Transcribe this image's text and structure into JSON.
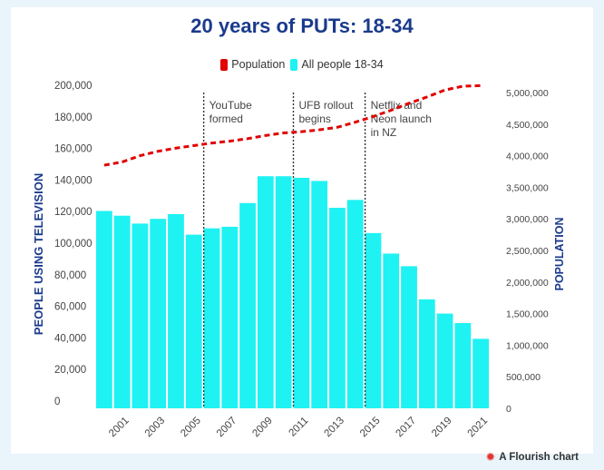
{
  "chart_data": {
    "type": "bar",
    "title": "20 years of PUTs: 18-34",
    "ylabel_left": "PEOPLE USING TELEVISION",
    "ylabel_right": "POPULATION",
    "years": [
      2000,
      2001,
      2002,
      2003,
      2004,
      2005,
      2006,
      2007,
      2008,
      2009,
      2010,
      2011,
      2012,
      2013,
      2014,
      2015,
      2016,
      2017,
      2018,
      2019,
      2020,
      2021
    ],
    "x_tick_labels": [
      "2001",
      "2003",
      "2005",
      "2007",
      "2009",
      "2011",
      "2013",
      "2015",
      "2017",
      "2019",
      "2021"
    ],
    "y_left_ticks": [
      "0",
      "20,000",
      "40,000",
      "60,000",
      "80,000",
      "100,000",
      "120,000",
      "140,000",
      "160,000",
      "180,000",
      "200,000"
    ],
    "y_left_max": 200000,
    "y_right_ticks": [
      "0",
      "500,000",
      "1,000,000",
      "1,500,000",
      "2,000,000",
      "2,500,000",
      "3,000,000",
      "3,500,000",
      "4,000,000",
      "4,500,000",
      "5,000,000"
    ],
    "y_right_max": 5000000,
    "series": [
      {
        "name": "All people 18-34",
        "color": "#1ff2f2",
        "axis": "left",
        "values": [
          125000,
          122000,
          117000,
          120000,
          123000,
          110000,
          114000,
          115000,
          130000,
          147000,
          147000,
          146000,
          144000,
          127000,
          132000,
          111000,
          98000,
          90000,
          69000,
          60000,
          54000,
          44000
        ]
      },
      {
        "name": "Population",
        "color": "#e00000",
        "axis": "right",
        "style": "dashed",
        "values": [
          3850000,
          3900000,
          4000000,
          4070000,
          4120000,
          4160000,
          4200000,
          4230000,
          4270000,
          4320000,
          4360000,
          4380000,
          4410000,
          4450000,
          4530000,
          4620000,
          4720000,
          4830000,
          4930000,
          5040000,
          5100000,
          5110000
        ]
      }
    ],
    "annotations": [
      {
        "year": 2006,
        "text": "YouTube formed",
        "lines": [
          "YouTube",
          "formed"
        ]
      },
      {
        "year": 2011,
        "text": "UFB rollout begins",
        "lines": [
          "UFB rollout",
          "begins"
        ]
      },
      {
        "year": 2015,
        "text": "Netflix and Neon launch in NZ",
        "lines": [
          "Netflix and",
          "Neon launch",
          "in NZ"
        ]
      }
    ]
  },
  "legend": {
    "population_label": "Population",
    "population_color": "#e00000",
    "people_label": "All people 18-34",
    "people_color": "#1ff2f2"
  },
  "footer": {
    "text": "A Flourish chart"
  }
}
